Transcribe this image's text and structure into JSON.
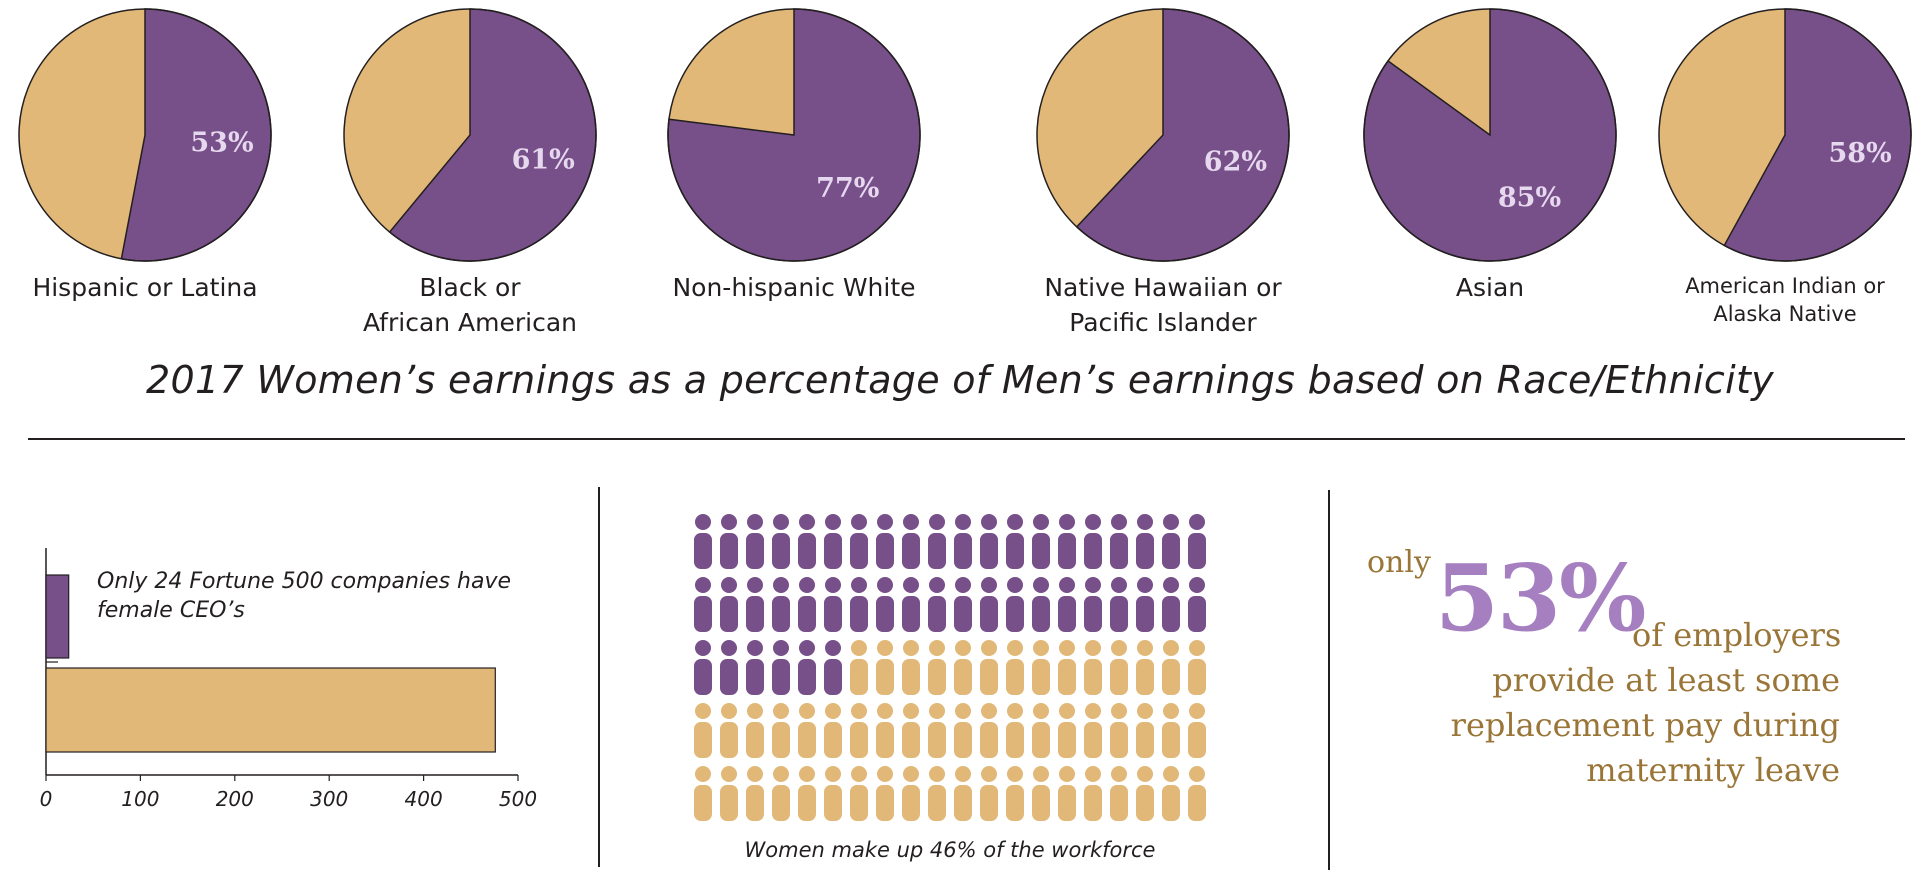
{
  "colors": {
    "purple": "#774f89",
    "gold": "#e1b877",
    "stat_purple": "#a57fbf",
    "stat_gold": "#9a7538",
    "ink": "#231f20"
  },
  "title": "2017 Women’s earnings as a percentage of Men’s earnings based on Race/Ethnicity",
  "chart_data": [
    {
      "type": "pie",
      "title": "2017 Women’s earnings as a percentage of Men’s earnings based on Race/Ethnicity",
      "pies": [
        {
          "label_lines": [
            "Hispanic or Latina"
          ],
          "percent": 53,
          "label_text": "53%"
        },
        {
          "label_lines": [
            "Black or",
            "African American"
          ],
          "percent": 61,
          "label_text": "61%"
        },
        {
          "label_lines": [
            "Non-hispanic White"
          ],
          "percent": 77,
          "label_text": "77%"
        },
        {
          "label_lines": [
            "Native Hawaiian or",
            "Pacific Islander"
          ],
          "percent": 62,
          "label_text": "62%"
        },
        {
          "label_lines": [
            "Asian"
          ],
          "percent": 85,
          "label_text": "85%"
        },
        {
          "label_lines": [
            "American Indian or",
            "Alaska Native"
          ],
          "percent": 58,
          "label_text": "58%"
        }
      ]
    },
    {
      "type": "bar",
      "orientation": "horizontal",
      "annotation": "Only 24 Fortune 500 companies have female CEO’s",
      "bars": [
        {
          "value": 24,
          "color": "#774f89"
        },
        {
          "value": 476,
          "color": "#e1b877"
        }
      ],
      "xlim": [
        0,
        500
      ],
      "ticks": [
        "0",
        "100",
        "200",
        "300",
        "400",
        "500"
      ]
    },
    {
      "type": "pictogram",
      "caption": "Women make up 46% of the workforce",
      "total": 100,
      "highlighted": 46
    }
  ],
  "stat": {
    "prefix": "only",
    "value": "53%",
    "suffix": "of employers",
    "lines": [
      "provide at least some",
      "replacement pay during",
      "maternity leave"
    ]
  }
}
